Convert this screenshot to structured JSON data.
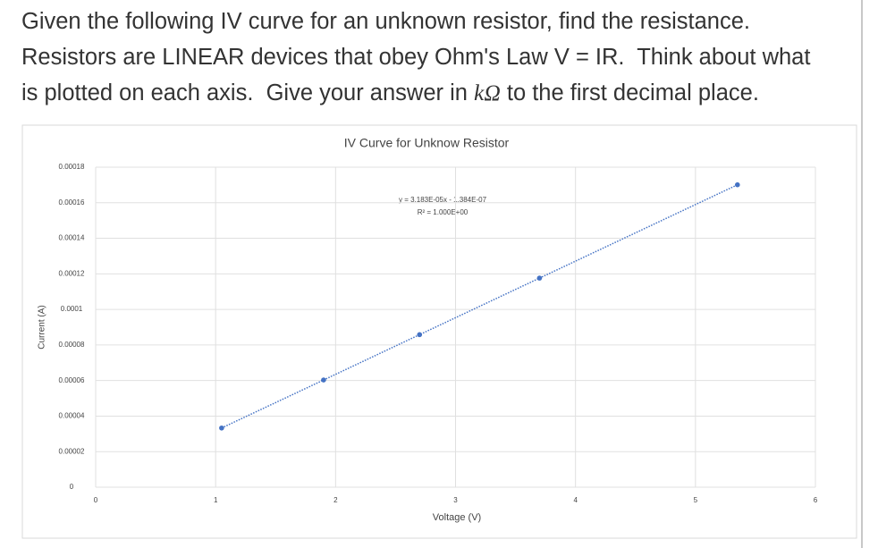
{
  "question": {
    "lines": [
      "Given the following IV curve for an unknown resistor, find the resistance.",
      "Resistors are LINEAR devices that obey Ohm's Law V = IR.  Think about what",
      "is plotted on each axis.  Give your answer in ",
      "kΩ",
      " to the first decimal place."
    ]
  },
  "chart_data": {
    "type": "scatter",
    "title": "IV Curve for Unknow Resistor",
    "x_label": "Voltage (V)",
    "y_label": "Current (A)",
    "x": [
      1.05,
      1.9,
      2.7,
      3.7,
      5.35
    ],
    "values": [
      3.33e-05,
      6.03e-05,
      8.58e-05,
      0.0001176,
      0.0001701
    ],
    "color": "#4472c4",
    "trendline": "linear",
    "annotations": [
      "y = 3.183E-05x - 1.384E-07",
      "R² = 1.000E+00"
    ],
    "xlim": [
      0,
      6
    ],
    "xticks": [
      0,
      1,
      2,
      3,
      4,
      5,
      6
    ],
    "ylim": [
      0,
      0.00018
    ],
    "yticks": [
      0,
      2e-05,
      4e-05,
      6e-05,
      8e-05,
      0.0001,
      0.00012,
      0.00014,
      0.00016,
      0.00018
    ],
    "grid": true
  }
}
